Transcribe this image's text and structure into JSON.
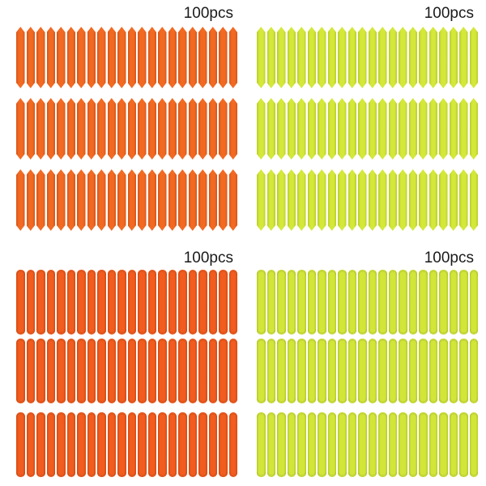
{
  "quadrants": [
    {
      "label": "100pcs",
      "color": "orange",
      "shape": "pointed-tip",
      "fill": "#f26a22",
      "shade": "#d4551a",
      "rows": 3,
      "per_row": 22
    },
    {
      "label": "100pcs",
      "color": "yellow-green",
      "shape": "pointed-tip",
      "fill": "#d4e83a",
      "shade": "#b9cc28",
      "rows": 3,
      "per_row": 22
    },
    {
      "label": "100pcs",
      "color": "orange",
      "shape": "round-end",
      "fill": "#f25c1e",
      "shade": "#d24a14",
      "rows": 3,
      "per_row": 22
    },
    {
      "label": "100pcs",
      "color": "yellow-green",
      "shape": "round-end",
      "fill": "#d2e63a",
      "shade": "#b6ca26",
      "rows": 3,
      "per_row": 22
    }
  ]
}
